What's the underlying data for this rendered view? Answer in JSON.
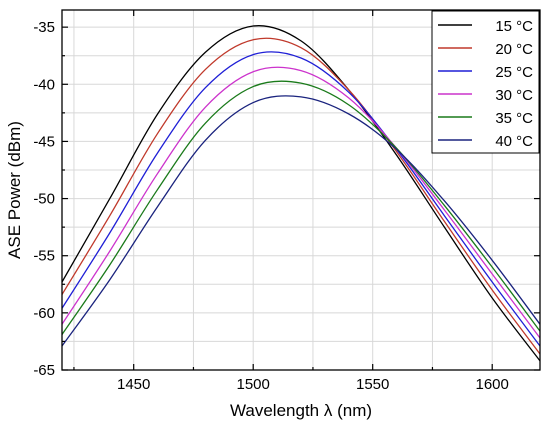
{
  "chart_data": {
    "type": "line",
    "title": "",
    "xlabel": "Wavelength λ (nm)",
    "ylabel": "ASE Power (dBm)",
    "xlim": [
      1420,
      1620
    ],
    "ylim": [
      -65,
      -33.5
    ],
    "xticks": [
      1450,
      1500,
      1550,
      1600
    ],
    "yticks": [
      -65,
      -60,
      -55,
      -50,
      -45,
      -40,
      -35
    ],
    "x_tick_labels": [
      "1450",
      "1500",
      "1550",
      "1600"
    ],
    "y_tick_labels": [
      "-65",
      "-60",
      "-55",
      "-50",
      "-45",
      "-40",
      "-35"
    ],
    "grid": true,
    "legend_position": "top-right",
    "x": [
      1420,
      1440,
      1460,
      1480,
      1500,
      1520,
      1540,
      1560,
      1580,
      1600,
      1620
    ],
    "series": [
      {
        "name": "15 °C",
        "color": "#000000",
        "values": [
          -57.3,
          -50.0,
          -42.6,
          -37.2,
          -34.9,
          -36.2,
          -40.5,
          -46.2,
          -52.5,
          -58.7,
          -64.2
        ]
      },
      {
        "name": "20 °C",
        "color": "#c0392b",
        "values": [
          -58.4,
          -51.5,
          -44.3,
          -38.7,
          -36.1,
          -36.8,
          -40.5,
          -45.9,
          -52.0,
          -58.0,
          -63.6
        ]
      },
      {
        "name": "25 °C",
        "color": "#1f1fd6",
        "values": [
          -59.6,
          -53.0,
          -46.0,
          -40.3,
          -37.4,
          -37.7,
          -40.7,
          -45.7,
          -51.5,
          -57.3,
          -62.9
        ]
      },
      {
        "name": "30 °C",
        "color": "#cc33cc",
        "values": [
          -61.0,
          -54.6,
          -47.8,
          -42.0,
          -38.9,
          -38.8,
          -41.2,
          -45.6,
          -51.0,
          -56.6,
          -62.2
        ]
      },
      {
        "name": "35 °C",
        "color": "#1a7a1a",
        "values": [
          -61.9,
          -55.8,
          -49.2,
          -43.4,
          -40.2,
          -39.9,
          -41.8,
          -45.6,
          -50.6,
          -56.0,
          -61.6
        ]
      },
      {
        "name": "40 °C",
        "color": "#1a237e",
        "values": [
          -62.9,
          -57.1,
          -50.7,
          -44.9,
          -41.6,
          -41.1,
          -42.6,
          -45.7,
          -50.2,
          -55.4,
          -61.0
        ]
      }
    ]
  }
}
